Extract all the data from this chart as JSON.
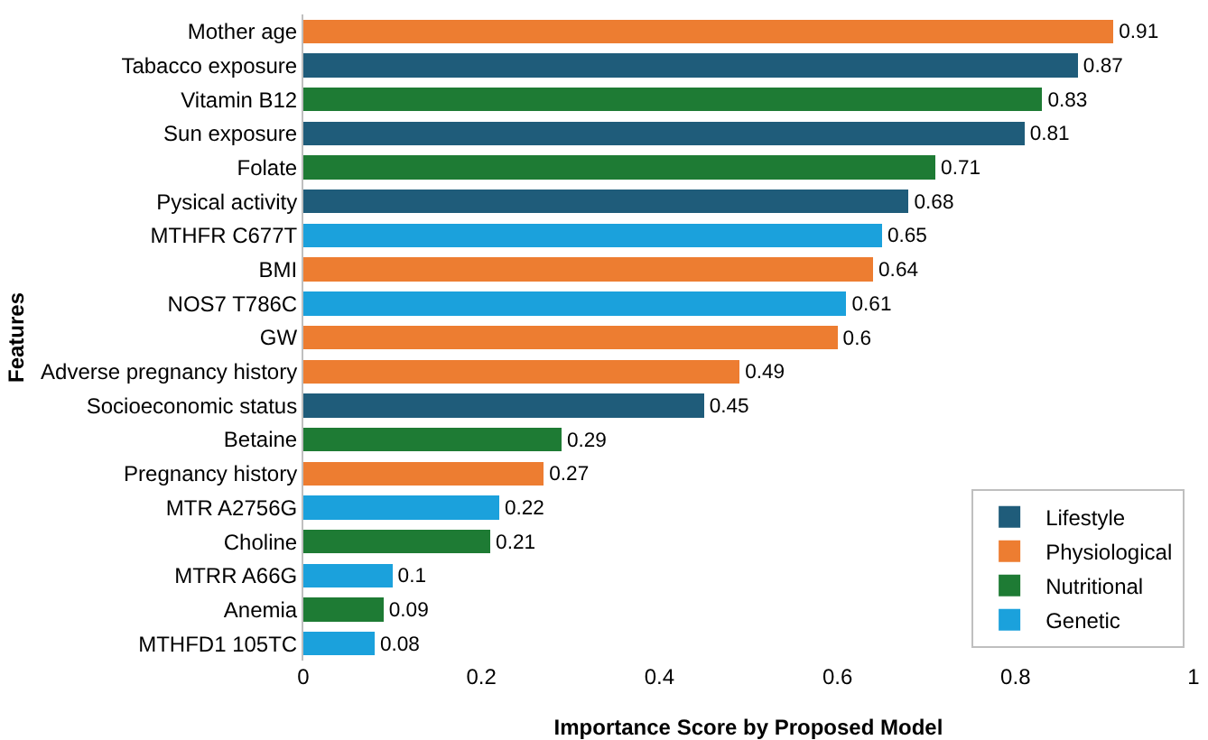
{
  "chart_data": {
    "type": "bar",
    "orientation": "horizontal",
    "stacked": true,
    "xlabel": "Importance Score by Proposed Model",
    "ylabel": "Features",
    "categories": [
      "Mother age",
      "Tabacco exposure",
      "Vitamin B12",
      "Sun exposure",
      "Folate",
      "Pysical activity",
      "MTHFR C677T",
      "BMI",
      "NOS7 T786C",
      "GW",
      "Adverse pregnancy history",
      "Socioeconomic status",
      "Betaine",
      "Pregnancy history",
      "MTR A2756G",
      "Choline",
      "MTRR A66G",
      "Anemia",
      "MTHFD1 105TC"
    ],
    "series": [
      {
        "name": "Genetic",
        "color": "#1ba1dc",
        "values": [
          null,
          null,
          null,
          null,
          null,
          null,
          0.65,
          null,
          0.61,
          null,
          null,
          null,
          null,
          null,
          0.22,
          null,
          0.1,
          null,
          0.08
        ]
      },
      {
        "name": "Nutritional",
        "color": "#1e7b34",
        "values": [
          null,
          null,
          0.83,
          null,
          0.71,
          null,
          null,
          null,
          null,
          null,
          null,
          null,
          0.29,
          null,
          null,
          0.21,
          null,
          0.09,
          null
        ]
      },
      {
        "name": "Physiological",
        "color": "#ed7d31",
        "values": [
          0.91,
          null,
          null,
          null,
          null,
          null,
          null,
          0.64,
          null,
          0.6,
          0.49,
          null,
          null,
          0.27,
          null,
          null,
          null,
          null,
          null
        ]
      },
      {
        "name": "Lifestyle",
        "color": "#1f5c7a",
        "values": [
          null,
          0.87,
          null,
          0.81,
          null,
          0.68,
          null,
          null,
          null,
          null,
          null,
          0.45,
          null,
          null,
          null,
          null,
          null,
          null,
          null
        ]
      }
    ],
    "xlim": [
      0,
      1
    ],
    "xticks": [
      0,
      0.2,
      0.4,
      0.6,
      0.8,
      1
    ],
    "data_labels": true,
    "grid": false,
    "legend": "bottom right"
  }
}
